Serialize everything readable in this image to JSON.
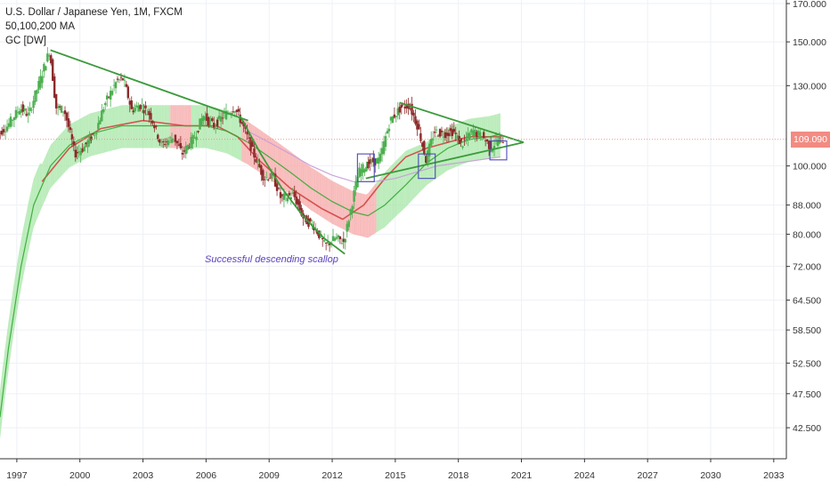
{
  "header": {
    "symbol_title": "U.S. Dollar / Japanese Yen, 1M, FXCM",
    "indicator_ma": "50,100,200 MA",
    "indicator_gc": "GC [DW]"
  },
  "annotation": "Successful descending scallop",
  "current_price": "109.090",
  "colors": {
    "up_candle": "#4caf50",
    "down_candle": "#8b2a2a",
    "trendline": "#3c9a3c",
    "band_green": "#a6e6a6",
    "band_red": "#f5a6a6",
    "ma_green": "#33a833",
    "ma_red": "#d44444",
    "box": "#4b4bb8",
    "price_tag": "#f28b82"
  },
  "chart_data": {
    "type": "candlestick",
    "title": "U.S. Dollar / Japanese Yen, 1M, FXCM",
    "x_ticks": [
      "1997",
      "2000",
      "2003",
      "2006",
      "2009",
      "2012",
      "2015",
      "2018",
      "2021",
      "2024",
      "2027",
      "2030",
      "2033"
    ],
    "y_ticks": [
      "170.000",
      "150.000",
      "130.000",
      "109.090",
      "100.000",
      "88.000",
      "80.000",
      "72.000",
      "64.500",
      "58.500",
      "52.500",
      "47.500",
      "42.500"
    ],
    "y_scale": "log",
    "xlim": [
      1996.2,
      2033.6
    ],
    "ylim": [
      38.4,
      172
    ],
    "last_price": 109.09,
    "price_points": [
      [
        1996.0,
        110
      ],
      [
        1996.6,
        114
      ],
      [
        1997.2,
        121
      ],
      [
        1997.6,
        118
      ],
      [
        1998.1,
        131
      ],
      [
        1998.6,
        146
      ],
      [
        1998.9,
        121
      ],
      [
        1999.3,
        120
      ],
      [
        1999.8,
        104
      ],
      [
        2000.2,
        106
      ],
      [
        2000.8,
        112
      ],
      [
        2001.2,
        122
      ],
      [
        2001.8,
        132
      ],
      [
        2002.1,
        133
      ],
      [
        2002.5,
        120
      ],
      [
        2002.9,
        122
      ],
      [
        2003.4,
        118
      ],
      [
        2003.9,
        107
      ],
      [
        2004.5,
        110
      ],
      [
        2004.9,
        104
      ],
      [
        2005.5,
        110
      ],
      [
        2005.9,
        118
      ],
      [
        2006.4,
        114
      ],
      [
        2006.9,
        118
      ],
      [
        2007.4,
        121
      ],
      [
        2007.8,
        114
      ],
      [
        2008.3,
        104
      ],
      [
        2008.8,
        96
      ],
      [
        2009.2,
        97
      ],
      [
        2009.6,
        90
      ],
      [
        2010.2,
        91
      ],
      [
        2010.7,
        84
      ],
      [
        2011.2,
        82
      ],
      [
        2011.7,
        77
      ],
      [
        2012.2,
        79
      ],
      [
        2012.6,
        78
      ],
      [
        2012.9,
        86
      ],
      [
        2013.3,
        98
      ],
      [
        2013.8,
        101
      ],
      [
        2014.3,
        102
      ],
      [
        2014.8,
        116
      ],
      [
        2015.3,
        121
      ],
      [
        2015.7,
        122
      ],
      [
        2016.1,
        114
      ],
      [
        2016.5,
        102
      ],
      [
        2016.9,
        112
      ],
      [
        2017.3,
        111
      ],
      [
        2017.8,
        112
      ],
      [
        2018.2,
        107
      ],
      [
        2018.7,
        112
      ],
      [
        2019.2,
        110
      ],
      [
        2019.6,
        106
      ],
      [
        2019.9,
        109
      ],
      [
        2020.1,
        109
      ]
    ],
    "moving_averages": [
      {
        "name": "MA 50",
        "points": [
          [
            1998.2,
            95
          ],
          [
            1999.5,
            106
          ],
          [
            2001.0,
            113
          ],
          [
            2003.0,
            116
          ],
          [
            2005.0,
            114
          ],
          [
            2006.5,
            114
          ],
          [
            2007.5,
            110
          ],
          [
            2008.5,
            102
          ],
          [
            2010.0,
            93
          ],
          [
            2011.5,
            87
          ],
          [
            2012.5,
            84
          ],
          [
            2013.5,
            88
          ],
          [
            2014.5,
            96
          ],
          [
            2015.5,
            103
          ],
          [
            2016.5,
            106
          ],
          [
            2017.5,
            108
          ],
          [
            2018.5,
            110
          ],
          [
            2019.5,
            110
          ],
          [
            2020.0,
            110
          ]
        ]
      },
      {
        "name": "MA 100",
        "points": [
          [
            1996.2,
            44
          ],
          [
            1996.6,
            55
          ],
          [
            1997.2,
            72
          ],
          [
            1997.8,
            88
          ],
          [
            1998.6,
            100
          ],
          [
            1999.5,
            107
          ],
          [
            2000.5,
            111
          ],
          [
            2002.0,
            114
          ],
          [
            2004.0,
            114
          ],
          [
            2006.0,
            114
          ],
          [
            2007.0,
            112
          ],
          [
            2008.0,
            108
          ],
          [
            2009.0,
            103
          ],
          [
            2010.0,
            98
          ],
          [
            2011.0,
            93
          ],
          [
            2012.0,
            89
          ],
          [
            2013.0,
            86
          ],
          [
            2013.7,
            85
          ],
          [
            2014.5,
            88
          ],
          [
            2015.5,
            94
          ],
          [
            2016.5,
            101
          ],
          [
            2017.5,
            106
          ],
          [
            2018.5,
            109
          ],
          [
            2019.5,
            110
          ],
          [
            2020.0,
            111
          ]
        ]
      },
      {
        "name": "MA 200",
        "points": [
          [
            2008.0,
            112
          ],
          [
            2009.0,
            108
          ],
          [
            2010.0,
            104
          ],
          [
            2011.0,
            100
          ],
          [
            2012.0,
            97
          ],
          [
            2013.0,
            95
          ],
          [
            2014.0,
            95
          ],
          [
            2015.0,
            96
          ],
          [
            2016.0,
            98
          ],
          [
            2017.0,
            100
          ],
          [
            2018.0,
            101
          ],
          [
            2019.0,
            102
          ],
          [
            2020.0,
            103
          ]
        ]
      }
    ],
    "trendlines": [
      {
        "name": "upper descending",
        "from": [
          1998.6,
          146
        ],
        "to": [
          2008.0,
          116
        ]
      },
      {
        "name": "triangle top",
        "from": [
          2015.2,
          123
        ],
        "to": [
          2021.1,
          108
        ]
      },
      {
        "name": "triangle bottom",
        "from": [
          2013.6,
          96
        ],
        "to": [
          2021.1,
          108
        ]
      },
      {
        "name": "scallop",
        "points": [
          [
            2007.6,
            118
          ],
          [
            2008.6,
            104
          ],
          [
            2009.6,
            93
          ],
          [
            2010.6,
            85
          ],
          [
            2011.6,
            79
          ],
          [
            2012.6,
            75
          ]
        ]
      }
    ],
    "boxes": [
      {
        "x": [
          2013.2,
          2014.0
        ],
        "y": [
          95,
          104
        ]
      },
      {
        "x": [
          2016.1,
          2016.9
        ],
        "y": [
          96,
          104
        ]
      },
      {
        "x": [
          2019.5,
          2020.3
        ],
        "y": [
          102,
          108.5
        ]
      }
    ]
  }
}
